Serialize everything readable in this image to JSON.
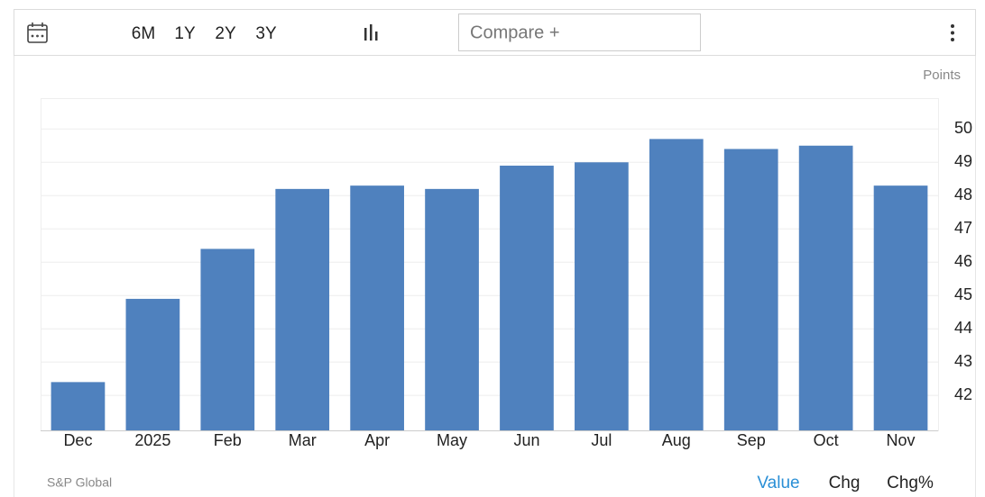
{
  "toolbar": {
    "ranges": [
      "6M",
      "1Y",
      "2Y",
      "3Y"
    ],
    "compare": "Compare +"
  },
  "chart_data": {
    "type": "bar",
    "unit": "Points",
    "categories": [
      "Dec",
      "2025",
      "Feb",
      "Mar",
      "Apr",
      "May",
      "Jun",
      "Jul",
      "Aug",
      "Sep",
      "Oct",
      "Nov"
    ],
    "values": [
      42.4,
      44.9,
      46.4,
      48.2,
      48.3,
      48.2,
      48.9,
      49.0,
      49.7,
      49.4,
      49.5,
      48.3
    ],
    "color": "#4f81be",
    "ylim": [
      40.95,
      50.9
    ],
    "yticks": [
      42,
      43,
      44,
      45,
      46,
      47,
      48,
      49,
      50
    ],
    "grid": true,
    "y_axis_side": "right"
  },
  "footer": {
    "source": "S&P Global",
    "tabs": [
      "Value",
      "Chg",
      "Chg%"
    ]
  }
}
